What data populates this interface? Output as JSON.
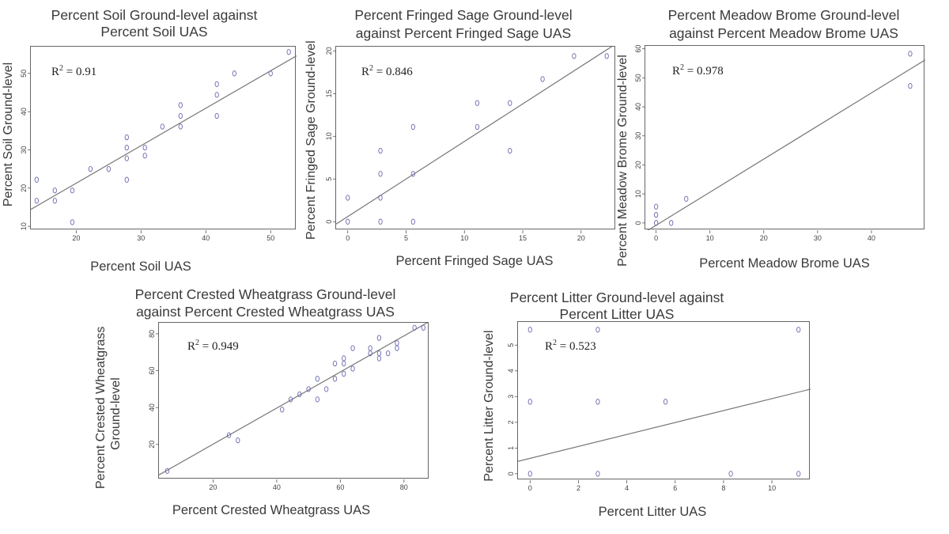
{
  "chart_data": [
    {
      "type": "scatter",
      "title_line1": "Percent Soil Ground-level against",
      "title_line2": "Percent Soil UAS",
      "xlabel": "Percent Soil UAS",
      "ylabel_line1": "Percent Soil Ground-level",
      "ylabel_line2": "",
      "r2_label": "R",
      "r2_value": " = 0.91",
      "xlim": [
        13,
        54
      ],
      "ylim": [
        9,
        57
      ],
      "xticks": [
        20,
        30,
        40,
        50
      ],
      "yticks": [
        10,
        20,
        30,
        40,
        50
      ],
      "x": [
        13.9,
        13.9,
        16.7,
        16.7,
        19.4,
        19.4,
        22.2,
        25,
        27.8,
        27.8,
        27.8,
        27.8,
        30.6,
        30.6,
        33.3,
        36.1,
        36.1,
        36.1,
        41.7,
        41.7,
        41.7,
        44.4,
        50,
        52.8
      ],
      "y": [
        16.7,
        22.2,
        16.7,
        19.4,
        11.1,
        19.4,
        25,
        25,
        22.2,
        27.8,
        30.6,
        33.3,
        28.5,
        30.6,
        36.1,
        36.1,
        38.9,
        41.7,
        38.9,
        44.4,
        47.2,
        50,
        50,
        55.6
      ],
      "fit": {
        "slope": 0.98,
        "intercept": 1.7
      }
    },
    {
      "type": "scatter",
      "title_line1": "Percent Fringed Sage Ground-level",
      "title_line2": "against Percent Fringed Sage UAS",
      "xlabel": "Percent Fringed Sage UAS",
      "ylabel_line1": "Percent Fringed Sage Ground-level",
      "ylabel_line2": "",
      "r2_label": "R",
      "r2_value": " = 0.846",
      "xlim": [
        -1,
        23
      ],
      "ylim": [
        -1,
        20.5
      ],
      "xticks": [
        0,
        5,
        10,
        15,
        20
      ],
      "yticks": [
        0,
        5,
        10,
        15,
        20
      ],
      "x": [
        0,
        0,
        2.8,
        2.8,
        2.8,
        2.8,
        5.6,
        5.6,
        5.6,
        11.1,
        11.1,
        13.9,
        13.9,
        16.7,
        19.4,
        22.2
      ],
      "y": [
        0,
        2.8,
        0,
        2.8,
        5.6,
        8.3,
        0,
        5.6,
        11.1,
        11.1,
        13.9,
        8.3,
        13.9,
        16.7,
        19.4,
        19.4
      ],
      "fit": {
        "slope": 0.88,
        "intercept": 0.6
      }
    },
    {
      "type": "scatter",
      "title_line1": "Percent Meadow Brome Ground-level",
      "title_line2": "against Percent Meadow Brome UAS",
      "xlabel": "Percent Meadow Brome UAS",
      "ylabel_line1": "Percent Meadow Brome Ground-level",
      "ylabel_line2": "",
      "r2_label": "R",
      "r2_value": " = 0.978",
      "xlim": [
        -2,
        50
      ],
      "ylim": [
        -2.5,
        61
      ],
      "xticks": [
        0,
        10,
        20,
        30,
        40
      ],
      "yticks": [
        0,
        10,
        20,
        30,
        40,
        50,
        60
      ],
      "x": [
        0,
        0,
        0,
        2.8,
        5.6,
        47.2,
        47.2
      ],
      "y": [
        0,
        2.8,
        5.6,
        0,
        8.3,
        47.2,
        58.3
      ],
      "fit": {
        "slope": 1.14,
        "intercept": -0.8
      }
    },
    {
      "type": "scatter",
      "title_line1": "Percent Crested Wheatgrass Ground-level",
      "title_line2": "against Percent Crested Wheatgrass UAS",
      "xlabel": "Percent Crested Wheatgrass UAS",
      "ylabel_line1": "Percent Crested Wheatgrass",
      "ylabel_line2": "Ground-level",
      "r2_label": "R",
      "r2_value": " = 0.949",
      "xlim": [
        3,
        88
      ],
      "ylim": [
        1,
        86
      ],
      "xticks": [
        20,
        40,
        60,
        80
      ],
      "yticks": [
        20,
        40,
        60,
        80
      ],
      "x": [
        5.6,
        25,
        27.8,
        41.7,
        44.4,
        47.2,
        50,
        52.8,
        52.8,
        55.6,
        58.3,
        58.3,
        61.1,
        61.1,
        61.1,
        63.9,
        63.9,
        69.4,
        69.4,
        72.2,
        72.2,
        72.2,
        75,
        77.8,
        77.8,
        83.3,
        86.1
      ],
      "y": [
        5.6,
        25,
        22.2,
        38.9,
        44.4,
        47.2,
        50,
        44.4,
        55.6,
        50,
        55.6,
        63.9,
        58.3,
        63.9,
        66.7,
        61.1,
        72.2,
        69.4,
        72.2,
        66.7,
        69.4,
        77.8,
        69.4,
        72.2,
        75,
        83.3,
        83.3
      ],
      "fit": {
        "slope": 0.98,
        "intercept": 0.5
      }
    },
    {
      "type": "scatter",
      "title_line1": "Percent Litter Ground-level against",
      "title_line2": "Percent Litter UAS",
      "xlabel": "Percent Litter UAS",
      "ylabel_line1": "Percent Litter Ground-level",
      "ylabel_line2": "",
      "r2_label": "R",
      "r2_value": " = 0.523",
      "xlim": [
        -0.5,
        11.6
      ],
      "ylim": [
        -0.25,
        5.9
      ],
      "xticks": [
        0,
        2,
        4,
        6,
        8,
        10
      ],
      "yticks": [
        0,
        1,
        2,
        3,
        4,
        5
      ],
      "x": [
        0,
        0,
        0,
        2.8,
        2.8,
        2.8,
        5.6,
        8.3,
        11.1,
        11.1
      ],
      "y": [
        0,
        2.8,
        5.6,
        0,
        2.8,
        5.6,
        2.8,
        0,
        0,
        5.6
      ],
      "fit": {
        "slope": 0.232,
        "intercept": 0.6
      }
    }
  ]
}
